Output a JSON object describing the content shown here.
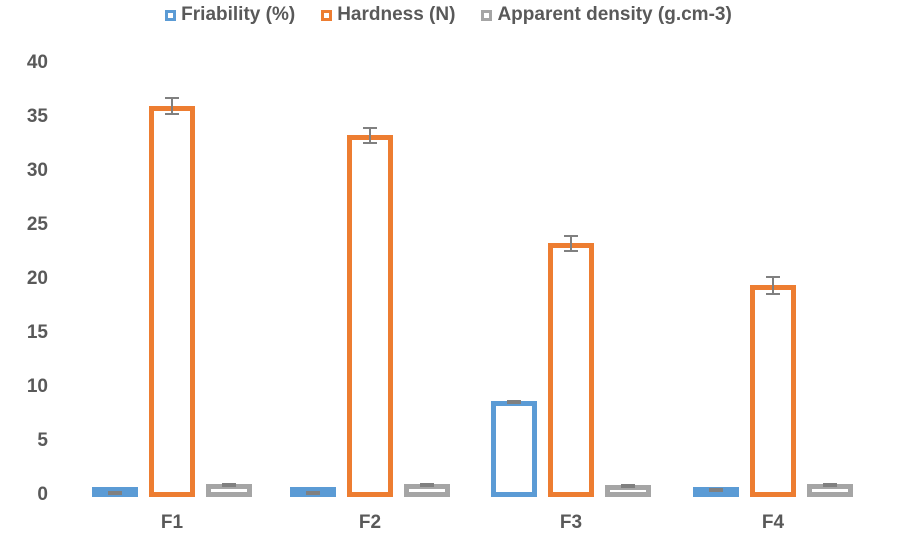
{
  "chart_data": {
    "type": "bar",
    "title": "",
    "xlabel": "",
    "ylabel": "",
    "ylim": [
      0,
      40
    ],
    "yticks": [
      0,
      5,
      10,
      15,
      20,
      25,
      30,
      35,
      40
    ],
    "grid": false,
    "legend_position": "top",
    "categories": [
      "F1",
      "F2",
      "F3",
      "F4"
    ],
    "series": [
      {
        "name": "Friability (%)",
        "color": "#5b9bd5",
        "values": [
          0.5,
          0.5,
          8.9,
          0.7
        ],
        "errors": [
          0.05,
          0.05,
          0.1,
          0.05
        ]
      },
      {
        "name": "Hardness (N)",
        "color": "#ed7d31",
        "values": [
          36.2,
          33.5,
          23.5,
          19.6
        ],
        "errors": [
          0.8,
          0.8,
          0.8,
          0.9
        ]
      },
      {
        "name": "Apparent density (g.cm-3)",
        "color": "#a5a5a5",
        "values": [
          1.2,
          1.2,
          1.1,
          1.2
        ],
        "errors": [
          0.05,
          0.05,
          0.05,
          0.05
        ]
      }
    ]
  },
  "legend": {
    "items": [
      {
        "label": "Friability (%)",
        "color": "#5b9bd5"
      },
      {
        "label": "Hardness (N)",
        "color": "#ed7d31"
      },
      {
        "label": "Apparent density (g.cm-3)",
        "color": "#a5a5a5"
      }
    ]
  },
  "axis": {
    "y_labels": [
      "40",
      "35",
      "30",
      "25",
      "20",
      "15",
      "10",
      "5",
      "0"
    ],
    "x_labels": [
      "F1",
      "F2",
      "F3",
      "F4"
    ]
  }
}
